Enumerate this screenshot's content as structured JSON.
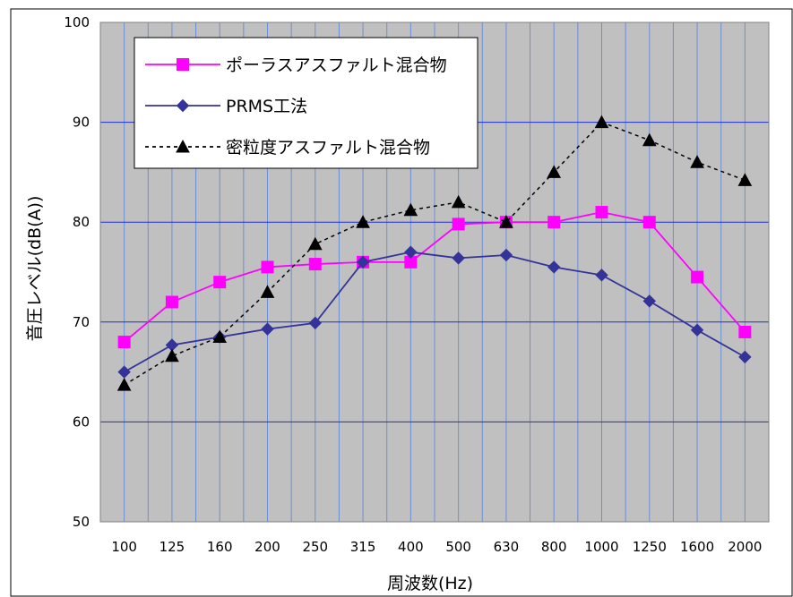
{
  "chart_data": {
    "type": "line",
    "categories": [
      "100",
      "125",
      "160",
      "200",
      "250",
      "315",
      "400",
      "500",
      "630",
      "800",
      "1000",
      "1250",
      "1600",
      "2000"
    ],
    "xlabel": "周波数(Hz)",
    "ylabel": "音圧レベル(dB(A))",
    "ylim": [
      50,
      100
    ],
    "yticks": [
      "50",
      "60",
      "70",
      "80",
      "90",
      "100"
    ],
    "grid": true,
    "legend_position": "top-left",
    "plot_background": "#c0c0c0",
    "series": [
      {
        "name": "ポーラスアスファルト混合物",
        "color": "#ff00ff",
        "marker": "square",
        "dash": "solid",
        "values": [
          68.0,
          72.0,
          74.0,
          75.5,
          75.8,
          76.0,
          76.0,
          79.8,
          80.0,
          80.0,
          81.0,
          80.0,
          74.5,
          69.0
        ]
      },
      {
        "name": "PRMS工法",
        "color": "#333399",
        "marker": "diamond",
        "dash": "solid",
        "values": [
          65.0,
          67.7,
          68.5,
          69.3,
          69.9,
          76.0,
          77.0,
          76.4,
          76.7,
          75.5,
          74.7,
          72.1,
          69.2,
          66.5
        ]
      },
      {
        "name": "密粒度アスファルト混合物",
        "color": "#000000",
        "marker": "triangle",
        "dash": "dotted",
        "values": [
          63.7,
          66.6,
          68.5,
          73.0,
          77.8,
          80.0,
          81.2,
          82.0,
          80.0,
          85.0,
          90.0,
          88.2,
          86.0,
          84.2
        ]
      }
    ]
  }
}
